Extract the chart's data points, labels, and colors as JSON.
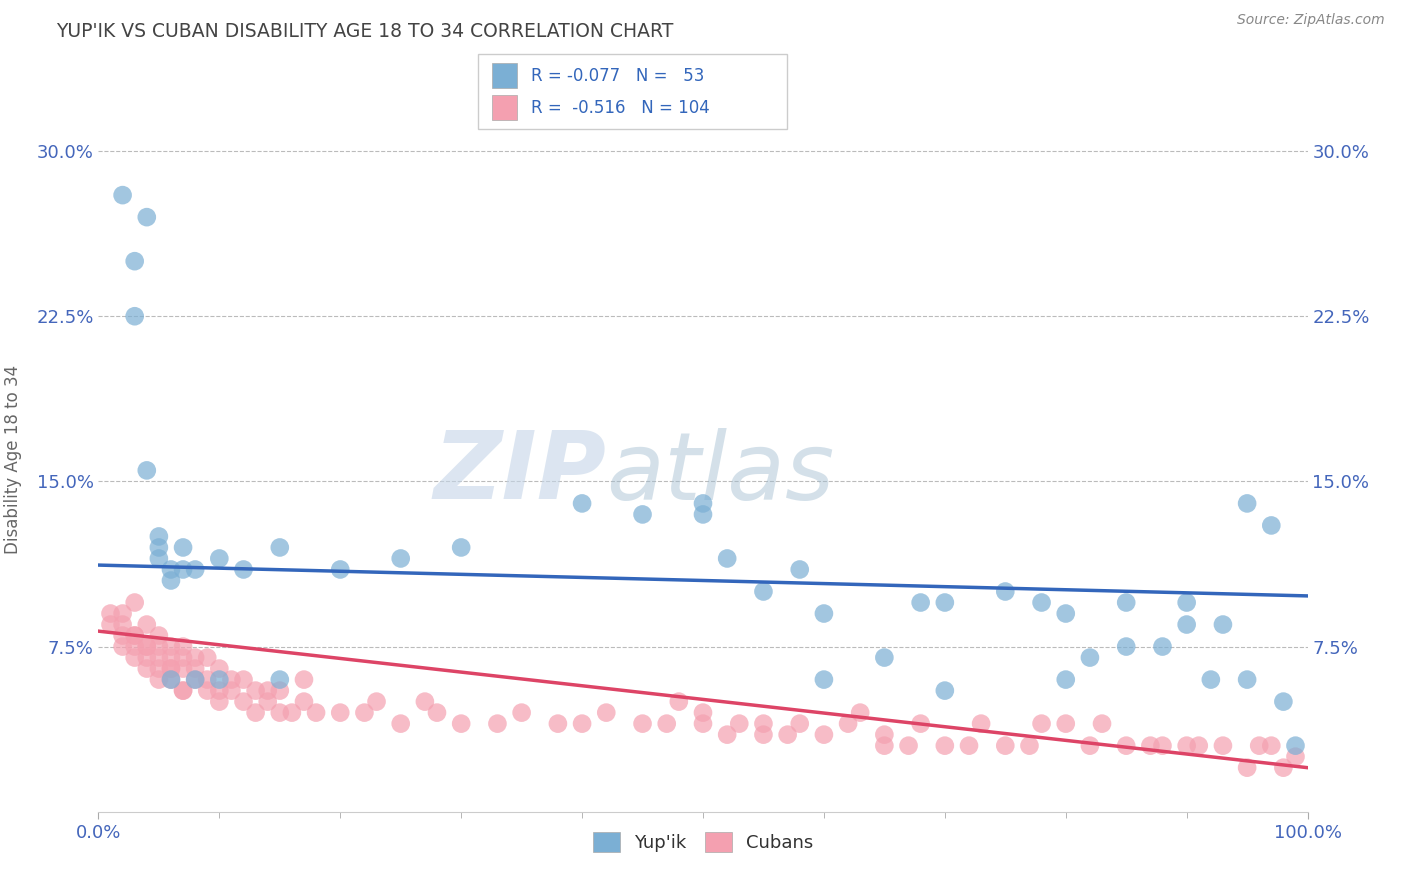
{
  "title": "YUP'IK VS CUBAN DISABILITY AGE 18 TO 34 CORRELATION CHART",
  "source": "Source: ZipAtlas.com",
  "ylabel": "Disability Age 18 to 34",
  "xlim": [
    0,
    1
  ],
  "ylim": [
    0,
    0.32
  ],
  "yticks": [
    0.075,
    0.15,
    0.225,
    0.3
  ],
  "ytick_labels": [
    "7.5%",
    "15.0%",
    "22.5%",
    "30.0%"
  ],
  "xtick_labels": [
    "0.0%",
    "100.0%"
  ],
  "blue_color": "#7BAFD4",
  "pink_color": "#F4A0B0",
  "blue_line_color": "#3366BB",
  "pink_line_color": "#DD4466",
  "background_color": "#FFFFFF",
  "grid_color": "#BBBBBB",
  "title_color": "#444444",
  "axis_label_color": "#4466BB",
  "watermark_text1": "ZIP",
  "watermark_text2": "atlas",
  "yupik_x": [
    0.02,
    0.03,
    0.04,
    0.05,
    0.05,
    0.05,
    0.06,
    0.06,
    0.07,
    0.07,
    0.08,
    0.1,
    0.12,
    0.15,
    0.2,
    0.25,
    0.3,
    0.4,
    0.45,
    0.5,
    0.5,
    0.52,
    0.55,
    0.58,
    0.6,
    0.65,
    0.68,
    0.7,
    0.75,
    0.78,
    0.8,
    0.82,
    0.85,
    0.88,
    0.9,
    0.93,
    0.95,
    0.97,
    0.98,
    0.99,
    0.03,
    0.04,
    0.06,
    0.08,
    0.1,
    0.15,
    0.6,
    0.7,
    0.8,
    0.85,
    0.9,
    0.92,
    0.95
  ],
  "yupik_y": [
    0.28,
    0.225,
    0.155,
    0.115,
    0.12,
    0.125,
    0.11,
    0.105,
    0.12,
    0.11,
    0.11,
    0.115,
    0.11,
    0.12,
    0.11,
    0.115,
    0.12,
    0.14,
    0.135,
    0.135,
    0.14,
    0.115,
    0.1,
    0.11,
    0.09,
    0.07,
    0.095,
    0.095,
    0.1,
    0.095,
    0.09,
    0.07,
    0.095,
    0.075,
    0.085,
    0.085,
    0.14,
    0.13,
    0.05,
    0.03,
    0.25,
    0.27,
    0.06,
    0.06,
    0.06,
    0.06,
    0.06,
    0.055,
    0.06,
    0.075,
    0.095,
    0.06,
    0.06
  ],
  "cuban_x": [
    0.01,
    0.02,
    0.02,
    0.02,
    0.03,
    0.03,
    0.03,
    0.03,
    0.04,
    0.04,
    0.04,
    0.04,
    0.05,
    0.05,
    0.05,
    0.05,
    0.05,
    0.06,
    0.06,
    0.06,
    0.06,
    0.06,
    0.07,
    0.07,
    0.07,
    0.07,
    0.07,
    0.08,
    0.08,
    0.08,
    0.09,
    0.09,
    0.09,
    0.1,
    0.1,
    0.1,
    0.11,
    0.11,
    0.12,
    0.12,
    0.13,
    0.13,
    0.14,
    0.14,
    0.15,
    0.15,
    0.16,
    0.17,
    0.17,
    0.18,
    0.2,
    0.22,
    0.23,
    0.25,
    0.27,
    0.28,
    0.3,
    0.33,
    0.35,
    0.38,
    0.4,
    0.42,
    0.45,
    0.47,
    0.48,
    0.5,
    0.5,
    0.52,
    0.53,
    0.55,
    0.55,
    0.57,
    0.58,
    0.6,
    0.62,
    0.63,
    0.65,
    0.65,
    0.67,
    0.68,
    0.7,
    0.72,
    0.73,
    0.75,
    0.77,
    0.78,
    0.8,
    0.82,
    0.83,
    0.85,
    0.87,
    0.88,
    0.9,
    0.91,
    0.93,
    0.95,
    0.96,
    0.97,
    0.98,
    0.99,
    0.01,
    0.02,
    0.03,
    0.04
  ],
  "cuban_y": [
    0.085,
    0.08,
    0.075,
    0.085,
    0.07,
    0.075,
    0.08,
    0.08,
    0.065,
    0.075,
    0.07,
    0.075,
    0.06,
    0.065,
    0.07,
    0.075,
    0.08,
    0.06,
    0.065,
    0.07,
    0.075,
    0.065,
    0.055,
    0.065,
    0.07,
    0.075,
    0.055,
    0.06,
    0.065,
    0.07,
    0.055,
    0.06,
    0.07,
    0.05,
    0.055,
    0.065,
    0.055,
    0.06,
    0.05,
    0.06,
    0.045,
    0.055,
    0.05,
    0.055,
    0.045,
    0.055,
    0.045,
    0.05,
    0.06,
    0.045,
    0.045,
    0.045,
    0.05,
    0.04,
    0.05,
    0.045,
    0.04,
    0.04,
    0.045,
    0.04,
    0.04,
    0.045,
    0.04,
    0.04,
    0.05,
    0.04,
    0.045,
    0.035,
    0.04,
    0.035,
    0.04,
    0.035,
    0.04,
    0.035,
    0.04,
    0.045,
    0.03,
    0.035,
    0.03,
    0.04,
    0.03,
    0.03,
    0.04,
    0.03,
    0.03,
    0.04,
    0.04,
    0.03,
    0.04,
    0.03,
    0.03,
    0.03,
    0.03,
    0.03,
    0.03,
    0.02,
    0.03,
    0.03,
    0.02,
    0.025,
    0.09,
    0.09,
    0.095,
    0.085
  ]
}
